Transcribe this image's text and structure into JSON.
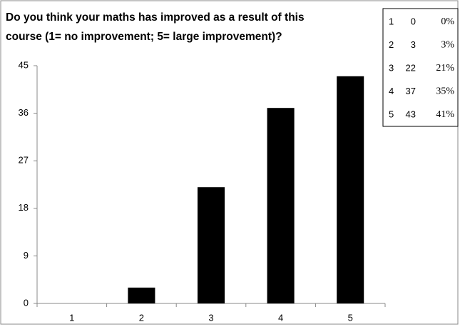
{
  "chart_data": {
    "type": "bar",
    "title_lines": [
      "Do you think your maths has improved as a result of this",
      "course (1= no improvement; 5= large improvement)?"
    ],
    "categories": [
      "1",
      "2",
      "3",
      "4",
      "5"
    ],
    "values": [
      0,
      3,
      22,
      37,
      43
    ],
    "color": "#000000",
    "ylim": [
      0,
      45
    ],
    "yticks": [
      0,
      9,
      18,
      27,
      36,
      45
    ],
    "grid": false
  },
  "table": {
    "rows": [
      [
        "1",
        "0",
        "0%"
      ],
      [
        "2",
        "3",
        "3%"
      ],
      [
        "3",
        "22",
        "21%"
      ],
      [
        "4",
        "37",
        "35%"
      ],
      [
        "5",
        "43",
        "41%"
      ]
    ]
  }
}
